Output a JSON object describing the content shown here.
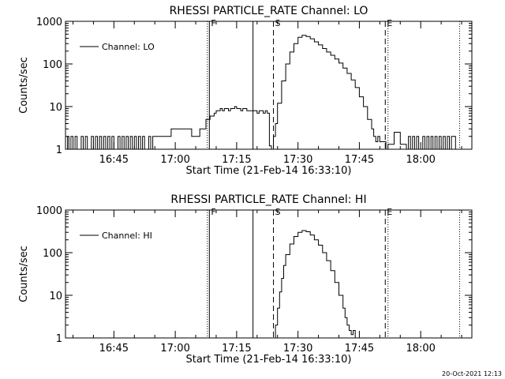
{
  "colors": {
    "background": "#ffffff",
    "foreground": "#000000"
  },
  "stamp": "20-Oct-2021 12:13",
  "chart_data": [
    {
      "type": "line",
      "title": "RHESSI PARTICLE_RATE Channel: LO",
      "xlabel": "Start Time (21-Feb-14 16:33:10)",
      "ylabel": "Counts/sec",
      "y_scale": "log",
      "ylim": [
        1,
        1000
      ],
      "y_ticks": [
        {
          "v": 1,
          "label": "1"
        },
        {
          "v": 10,
          "label": "10"
        },
        {
          "v": 100,
          "label": "100"
        },
        {
          "v": 1000,
          "label": "1000"
        }
      ],
      "xlim": [
        "16:33:10",
        "18:12:30"
      ],
      "x_ticks": [
        "16:45",
        "17:00",
        "17:15",
        "17:30",
        "17:45",
        "18:00"
      ],
      "legend": {
        "position": "top-left",
        "label": "Channel: LO"
      },
      "markers": [
        {
          "time": "17:08:20",
          "style": "solid",
          "label": "F"
        },
        {
          "time": "17:07:50",
          "style": "dotted",
          "label": ""
        },
        {
          "time": "17:19:00",
          "style": "solid",
          "label": ""
        },
        {
          "time": "17:24:00",
          "style": "dashed",
          "label": "S"
        },
        {
          "time": "17:51:20",
          "style": "dashed",
          "label": "E"
        },
        {
          "time": "17:52:00",
          "style": "dotted",
          "label": ""
        },
        {
          "time": "18:09:30",
          "style": "dotted",
          "label": ""
        }
      ],
      "series": [
        {
          "name": "Channel: LO",
          "points": [
            [
              "16:33:20",
              1
            ],
            [
              "16:33:40",
              2
            ],
            [
              "16:34:00",
              1
            ],
            [
              "16:34:30",
              2
            ],
            [
              "16:35:00",
              1
            ],
            [
              "16:35:30",
              2
            ],
            [
              "16:36:00",
              1
            ],
            [
              "16:36:30",
              1
            ],
            [
              "16:37:00",
              2
            ],
            [
              "16:37:30",
              1
            ],
            [
              "16:38:00",
              2
            ],
            [
              "16:38:30",
              1
            ],
            [
              "16:39:00",
              1
            ],
            [
              "16:39:30",
              2
            ],
            [
              "16:40:00",
              1
            ],
            [
              "16:40:30",
              2
            ],
            [
              "16:41:00",
              1
            ],
            [
              "16:41:30",
              2
            ],
            [
              "16:42:00",
              1
            ],
            [
              "16:42:30",
              2
            ],
            [
              "16:43:00",
              1
            ],
            [
              "16:43:30",
              2
            ],
            [
              "16:44:00",
              1
            ],
            [
              "16:44:30",
              2
            ],
            [
              "16:45:00",
              1
            ],
            [
              "16:45:30",
              1
            ],
            [
              "16:46:00",
              2
            ],
            [
              "16:46:30",
              1
            ],
            [
              "16:47:00",
              2
            ],
            [
              "16:47:30",
              1
            ],
            [
              "16:48:00",
              2
            ],
            [
              "16:48:30",
              1
            ],
            [
              "16:49:00",
              2
            ],
            [
              "16:49:30",
              1
            ],
            [
              "16:50:00",
              2
            ],
            [
              "16:50:30",
              1
            ],
            [
              "16:51:00",
              2
            ],
            [
              "16:51:30",
              1
            ],
            [
              "16:52:00",
              2
            ],
            [
              "16:52:30",
              1
            ],
            [
              "16:53:00",
              1
            ],
            [
              "16:53:30",
              2
            ],
            [
              "16:54:00",
              1
            ],
            [
              "16:54:30",
              2
            ],
            [
              "16:55:00",
              2
            ],
            [
              "16:55:30",
              2
            ],
            [
              "16:56:00",
              2
            ],
            [
              "16:56:30",
              2
            ],
            [
              "16:57:00",
              2
            ],
            [
              "16:57:30",
              2
            ],
            [
              "16:58:00",
              2
            ],
            [
              "16:58:30",
              2
            ],
            [
              "16:59:00",
              3
            ],
            [
              "16:59:30",
              3
            ],
            [
              "17:00:00",
              3
            ],
            [
              "17:00:30",
              3
            ],
            [
              "17:01:00",
              3
            ],
            [
              "17:01:30",
              3
            ],
            [
              "17:02:00",
              3
            ],
            [
              "17:02:30",
              3
            ],
            [
              "17:03:00",
              3
            ],
            [
              "17:03:30",
              3
            ],
            [
              "17:04:00",
              2
            ],
            [
              "17:04:30",
              2
            ],
            [
              "17:05:00",
              2
            ],
            [
              "17:05:30",
              2
            ],
            [
              "17:06:00",
              3
            ],
            [
              "17:06:30",
              3
            ],
            [
              "17:07:00",
              3
            ],
            [
              "17:07:30",
              5
            ],
            [
              "17:08:00",
              5
            ],
            [
              "17:08:30",
              6
            ],
            [
              "17:09:00",
              6
            ],
            [
              "17:09:30",
              7
            ],
            [
              "17:10:00",
              8
            ],
            [
              "17:10:30",
              8
            ],
            [
              "17:11:00",
              9
            ],
            [
              "17:11:30",
              8
            ],
            [
              "17:12:00",
              9
            ],
            [
              "17:12:30",
              9
            ],
            [
              "17:13:00",
              8
            ],
            [
              "17:13:30",
              9
            ],
            [
              "17:14:00",
              9
            ],
            [
              "17:14:30",
              10
            ],
            [
              "17:15:00",
              9
            ],
            [
              "17:15:30",
              9
            ],
            [
              "17:16:00",
              8
            ],
            [
              "17:16:30",
              9
            ],
            [
              "17:17:00",
              9
            ],
            [
              "17:17:30",
              8
            ],
            [
              "17:18:00",
              8
            ],
            [
              "17:18:30",
              8
            ],
            [
              "17:19:00",
              8
            ],
            [
              "17:19:30",
              8
            ],
            [
              "17:20:00",
              7
            ],
            [
              "17:20:30",
              8
            ],
            [
              "17:21:00",
              8
            ],
            [
              "17:21:30",
              7
            ],
            [
              "17:22:00",
              8
            ],
            [
              "17:22:30",
              7
            ],
            [
              "17:23:00",
              1.2
            ],
            [
              "17:23:30",
              1
            ],
            [
              "17:24:00",
              2
            ],
            [
              "17:24:30",
              4
            ],
            [
              "17:25:00",
              12
            ],
            [
              "17:26:00",
              40
            ],
            [
              "17:27:00",
              100
            ],
            [
              "17:28:00",
              190
            ],
            [
              "17:29:00",
              300
            ],
            [
              "17:30:00",
              420
            ],
            [
              "17:31:00",
              470
            ],
            [
              "17:32:00",
              440
            ],
            [
              "17:33:00",
              390
            ],
            [
              "17:34:00",
              330
            ],
            [
              "17:35:00",
              280
            ],
            [
              "17:36:00",
              230
            ],
            [
              "17:37:00",
              190
            ],
            [
              "17:38:00",
              160
            ],
            [
              "17:39:00",
              130
            ],
            [
              "17:40:00",
              105
            ],
            [
              "17:41:00",
              80
            ],
            [
              "17:42:00",
              60
            ],
            [
              "17:43:00",
              42
            ],
            [
              "17:44:00",
              28
            ],
            [
              "17:45:00",
              17
            ],
            [
              "17:46:00",
              10
            ],
            [
              "17:47:00",
              5
            ],
            [
              "17:48:00",
              3
            ],
            [
              "17:48:30",
              2
            ],
            [
              "17:49:00",
              1.5
            ],
            [
              "17:49:30",
              2
            ],
            [
              "17:50:00",
              1.5
            ],
            [
              "17:50:30",
              1.5
            ],
            [
              "17:51:00",
              1.5
            ],
            [
              "17:51:30",
              1
            ],
            [
              "17:52:00",
              1.3
            ],
            [
              "17:52:30",
              1.3
            ],
            [
              "17:53:00",
              1.3
            ],
            [
              "17:53:30",
              2.5
            ],
            [
              "17:54:00",
              2.5
            ],
            [
              "17:54:30",
              2.5
            ],
            [
              "17:55:00",
              1.3
            ],
            [
              "17:55:30",
              1.3
            ],
            [
              "17:56:00",
              1.3
            ],
            [
              "17:56:30",
              1
            ],
            [
              "17:57:00",
              2
            ],
            [
              "17:57:30",
              1
            ],
            [
              "17:58:00",
              2
            ],
            [
              "17:58:30",
              1
            ],
            [
              "17:59:00",
              2
            ],
            [
              "17:59:30",
              1
            ],
            [
              "18:00:00",
              1
            ],
            [
              "18:00:30",
              2
            ],
            [
              "18:01:00",
              1
            ],
            [
              "18:01:30",
              2
            ],
            [
              "18:02:00",
              1
            ],
            [
              "18:02:30",
              2
            ],
            [
              "18:03:00",
              1
            ],
            [
              "18:03:30",
              2
            ],
            [
              "18:04:00",
              1
            ],
            [
              "18:04:30",
              2
            ],
            [
              "18:05:00",
              1
            ],
            [
              "18:05:30",
              2
            ],
            [
              "18:06:00",
              1
            ],
            [
              "18:06:30",
              2
            ],
            [
              "18:07:00",
              1
            ],
            [
              "18:07:30",
              2
            ],
            [
              "18:08:00",
              2
            ],
            [
              "18:08:30",
              1
            ]
          ]
        }
      ]
    },
    {
      "type": "line",
      "title": "RHESSI PARTICLE_RATE Channel: HI",
      "xlabel": "Start Time (21-Feb-14 16:33:10)",
      "ylabel": "Counts/sec",
      "y_scale": "log",
      "ylim": [
        1,
        1000
      ],
      "y_ticks": [
        {
          "v": 1,
          "label": "1"
        },
        {
          "v": 10,
          "label": "10"
        },
        {
          "v": 100,
          "label": "100"
        },
        {
          "v": 1000,
          "label": "1000"
        }
      ],
      "xlim": [
        "16:33:10",
        "18:12:30"
      ],
      "x_ticks": [
        "16:45",
        "17:00",
        "17:15",
        "17:30",
        "17:45",
        "18:00"
      ],
      "legend": {
        "position": "top-left",
        "label": "Channel: HI"
      },
      "markers": [
        {
          "time": "17:08:20",
          "style": "solid",
          "label": "F"
        },
        {
          "time": "17:07:50",
          "style": "dotted",
          "label": ""
        },
        {
          "time": "17:19:00",
          "style": "solid",
          "label": ""
        },
        {
          "time": "17:24:00",
          "style": "dashed",
          "label": "S"
        },
        {
          "time": "17:51:20",
          "style": "dashed",
          "label": "E"
        },
        {
          "time": "17:52:00",
          "style": "dotted",
          "label": ""
        },
        {
          "time": "18:09:30",
          "style": "dotted",
          "label": ""
        }
      ],
      "series": [
        {
          "name": "Channel: HI",
          "points": [
            [
              "17:23:50",
              1
            ],
            [
              "17:24:30",
              2
            ],
            [
              "17:25:00",
              5
            ],
            [
              "17:25:30",
              12
            ],
            [
              "17:26:00",
              25
            ],
            [
              "17:26:30",
              50
            ],
            [
              "17:27:00",
              90
            ],
            [
              "17:28:00",
              160
            ],
            [
              "17:29:00",
              240
            ],
            [
              "17:30:00",
              300
            ],
            [
              "17:31:00",
              330
            ],
            [
              "17:32:00",
              310
            ],
            [
              "17:33:00",
              260
            ],
            [
              "17:34:00",
              200
            ],
            [
              "17:35:00",
              150
            ],
            [
              "17:36:00",
              100
            ],
            [
              "17:37:00",
              65
            ],
            [
              "17:38:00",
              38
            ],
            [
              "17:39:00",
              20
            ],
            [
              "17:40:00",
              10
            ],
            [
              "17:41:00",
              5
            ],
            [
              "17:41:30",
              3
            ],
            [
              "17:42:00",
              2
            ],
            [
              "17:42:30",
              1.5
            ],
            [
              "17:43:00",
              1.2
            ],
            [
              "17:43:30",
              1.5
            ],
            [
              "17:44:00",
              1
            ]
          ]
        }
      ]
    }
  ]
}
